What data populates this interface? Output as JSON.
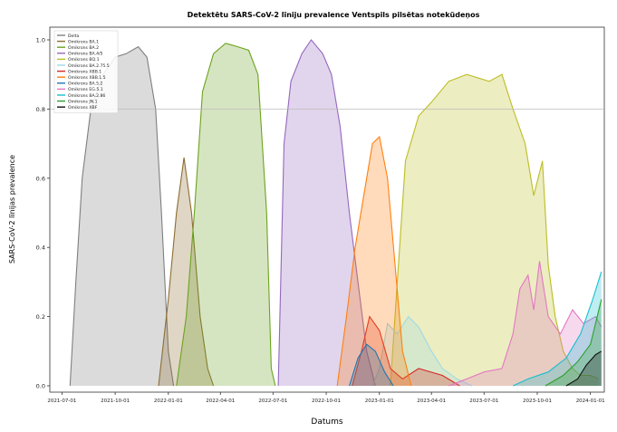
{
  "chart_data": {
    "type": "area",
    "title": "Detektētu SARS-CoV-2 līniju prevalence Ventspils pilsētas notekūdeņos",
    "xlabel": "Datums",
    "ylabel": "SARS-CoV-2 līnijas prevalence",
    "x_ticks": [
      "2021-07-01",
      "2021-10-01",
      "2022-01-01",
      "2022-04-01",
      "2022-07-01",
      "2022-10-01",
      "2023-01-01",
      "2023-04-01",
      "2023-07-01",
      "2023-10-01",
      "2024-01-01"
    ],
    "y_ticks": [
      "0.0",
      "0.2",
      "0.4",
      "0.6",
      "0.8",
      "1.0"
    ],
    "ylim": [
      0,
      1.0
    ],
    "xlim": [
      "2021-06-10",
      "2024-01-25"
    ],
    "hline": 0.8,
    "legend_position": "upper left",
    "series": [
      {
        "name": "Delta",
        "color": "#7f7f7f",
        "points": [
          [
            "2021-07-15",
            0
          ],
          [
            "2021-07-25",
            0.3
          ],
          [
            "2021-08-05",
            0.6
          ],
          [
            "2021-08-20",
            0.8
          ],
          [
            "2021-09-10",
            0.9
          ],
          [
            "2021-10-01",
            0.95
          ],
          [
            "2021-10-20",
            0.96
          ],
          [
            "2021-11-10",
            0.98
          ],
          [
            "2021-11-25",
            0.95
          ],
          [
            "2021-12-10",
            0.8
          ],
          [
            "2021-12-20",
            0.5
          ],
          [
            "2022-01-01",
            0.1
          ],
          [
            "2022-01-10",
            0
          ]
        ]
      },
      {
        "name": "Omikrons BA.1",
        "color": "#8c6d31",
        "points": [
          [
            "2021-12-15",
            0
          ],
          [
            "2022-01-01",
            0.25
          ],
          [
            "2022-01-15",
            0.5
          ],
          [
            "2022-01-28",
            0.66
          ],
          [
            "2022-02-10",
            0.5
          ],
          [
            "2022-02-25",
            0.2
          ],
          [
            "2022-03-10",
            0.05
          ],
          [
            "2022-03-20",
            0
          ]
        ]
      },
      {
        "name": "Omikrons BA.2",
        "color": "#6ba31f",
        "points": [
          [
            "2022-01-15",
            0
          ],
          [
            "2022-02-01",
            0.2
          ],
          [
            "2022-02-15",
            0.5
          ],
          [
            "2022-03-01",
            0.85
          ],
          [
            "2022-03-20",
            0.96
          ],
          [
            "2022-04-10",
            0.99
          ],
          [
            "2022-05-01",
            0.98
          ],
          [
            "2022-05-20",
            0.97
          ],
          [
            "2022-06-05",
            0.9
          ],
          [
            "2022-06-20",
            0.5
          ],
          [
            "2022-06-28",
            0.05
          ],
          [
            "2022-07-05",
            0
          ]
        ]
      },
      {
        "name": "Omikrons BA.4/5",
        "color": "#9467bd",
        "points": [
          [
            "2022-07-10",
            0
          ],
          [
            "2022-07-20",
            0.7
          ],
          [
            "2022-08-01",
            0.88
          ],
          [
            "2022-08-20",
            0.96
          ],
          [
            "2022-09-05",
            1.0
          ],
          [
            "2022-09-25",
            0.96
          ],
          [
            "2022-10-10",
            0.9
          ],
          [
            "2022-10-25",
            0.75
          ],
          [
            "2022-11-10",
            0.5
          ],
          [
            "2022-11-25",
            0.3
          ],
          [
            "2022-12-10",
            0.1
          ],
          [
            "2022-12-25",
            0
          ]
        ]
      },
      {
        "name": "Omikrons BQ.1",
        "color": "#bcbd22",
        "points": [
          [
            "2023-01-20",
            0
          ],
          [
            "2023-02-01",
            0.3
          ],
          [
            "2023-02-15",
            0.65
          ],
          [
            "2023-03-10",
            0.78
          ],
          [
            "2023-04-01",
            0.82
          ],
          [
            "2023-05-01",
            0.88
          ],
          [
            "2023-06-01",
            0.9
          ],
          [
            "2023-07-10",
            0.88
          ],
          [
            "2023-08-01",
            0.9
          ],
          [
            "2023-08-20",
            0.8
          ],
          [
            "2023-09-10",
            0.7
          ],
          [
            "2023-09-25",
            0.55
          ],
          [
            "2023-10-10",
            0.65
          ],
          [
            "2023-10-20",
            0.35
          ],
          [
            "2023-11-01",
            0.2
          ],
          [
            "2023-11-15",
            0.1
          ],
          [
            "2023-12-01",
            0.05
          ],
          [
            "2023-12-15",
            0.03
          ],
          [
            "2024-01-01",
            0.03
          ],
          [
            "2024-01-15",
            0.02
          ]
        ]
      },
      {
        "name": "Omikrons BA.2.75.5",
        "color": "#9edae5",
        "points": [
          [
            "2022-12-20",
            0
          ],
          [
            "2023-01-01",
            0.05
          ],
          [
            "2023-01-15",
            0.18
          ],
          [
            "2023-02-01",
            0.15
          ],
          [
            "2023-02-20",
            0.2
          ],
          [
            "2023-03-10",
            0.17
          ],
          [
            "2023-04-01",
            0.1
          ],
          [
            "2023-04-20",
            0.05
          ],
          [
            "2023-05-15",
            0.02
          ],
          [
            "2023-06-10",
            0
          ]
        ]
      },
      {
        "name": "Omikrons XBB.1",
        "color": "#d62728",
        "points": [
          [
            "2022-11-15",
            0
          ],
          [
            "2022-12-01",
            0.1
          ],
          [
            "2022-12-15",
            0.2
          ],
          [
            "2023-01-01",
            0.16
          ],
          [
            "2023-01-20",
            0.05
          ],
          [
            "2023-02-10",
            0.02
          ],
          [
            "2023-03-10",
            0.05
          ],
          [
            "2023-04-20",
            0.03
          ],
          [
            "2023-05-20",
            0
          ]
        ]
      },
      {
        "name": "Omikrons XBB.1.5",
        "color": "#ff7f0e",
        "points": [
          [
            "2022-10-20",
            0
          ],
          [
            "2022-11-05",
            0.2
          ],
          [
            "2022-11-20",
            0.4
          ],
          [
            "2022-12-05",
            0.55
          ],
          [
            "2022-12-20",
            0.7
          ],
          [
            "2023-01-01",
            0.72
          ],
          [
            "2023-01-15",
            0.6
          ],
          [
            "2023-01-28",
            0.35
          ],
          [
            "2023-02-10",
            0.1
          ],
          [
            "2023-02-25",
            0
          ]
        ]
      },
      {
        "name": "Omikrons BA.5.2",
        "color": "#1f77b4",
        "points": [
          [
            "2022-11-10",
            0
          ],
          [
            "2022-11-25",
            0.08
          ],
          [
            "2022-12-10",
            0.12
          ],
          [
            "2022-12-25",
            0.1
          ],
          [
            "2023-01-10",
            0.04
          ],
          [
            "2023-01-25",
            0
          ]
        ]
      },
      {
        "name": "Omikrons EG.5.1",
        "color": "#e377c2",
        "points": [
          [
            "2023-05-01",
            0
          ],
          [
            "2023-06-01",
            0.02
          ],
          [
            "2023-07-01",
            0.04
          ],
          [
            "2023-08-01",
            0.05
          ],
          [
            "2023-08-20",
            0.15
          ],
          [
            "2023-09-01",
            0.28
          ],
          [
            "2023-09-15",
            0.32
          ],
          [
            "2023-09-25",
            0.22
          ],
          [
            "2023-10-05",
            0.36
          ],
          [
            "2023-10-20",
            0.2
          ],
          [
            "2023-11-10",
            0.15
          ],
          [
            "2023-12-01",
            0.22
          ],
          [
            "2023-12-20",
            0.18
          ],
          [
            "2024-01-10",
            0.2
          ],
          [
            "2024-01-20",
            0.17
          ]
        ]
      },
      {
        "name": "Omikrons BA.2.86",
        "color": "#17becf",
        "points": [
          [
            "2023-08-20",
            0
          ],
          [
            "2023-09-15",
            0.02
          ],
          [
            "2023-10-20",
            0.04
          ],
          [
            "2023-11-20",
            0.08
          ],
          [
            "2023-12-15",
            0.15
          ],
          [
            "2024-01-05",
            0.25
          ],
          [
            "2024-01-20",
            0.33
          ]
        ]
      },
      {
        "name": "Omikrons JN.1",
        "color": "#2ca02c",
        "points": [
          [
            "2023-10-15",
            0
          ],
          [
            "2023-11-15",
            0.03
          ],
          [
            "2023-12-10",
            0.07
          ],
          [
            "2024-01-01",
            0.12
          ],
          [
            "2024-01-20",
            0.25
          ]
        ]
      },
      {
        "name": "Omikrons XBF",
        "color": "#111111",
        "points": [
          [
            "2023-11-20",
            0
          ],
          [
            "2023-12-10",
            0.02
          ],
          [
            "2023-12-25",
            0.06
          ],
          [
            "2024-01-10",
            0.09
          ],
          [
            "2024-01-20",
            0.1
          ]
        ]
      }
    ]
  }
}
